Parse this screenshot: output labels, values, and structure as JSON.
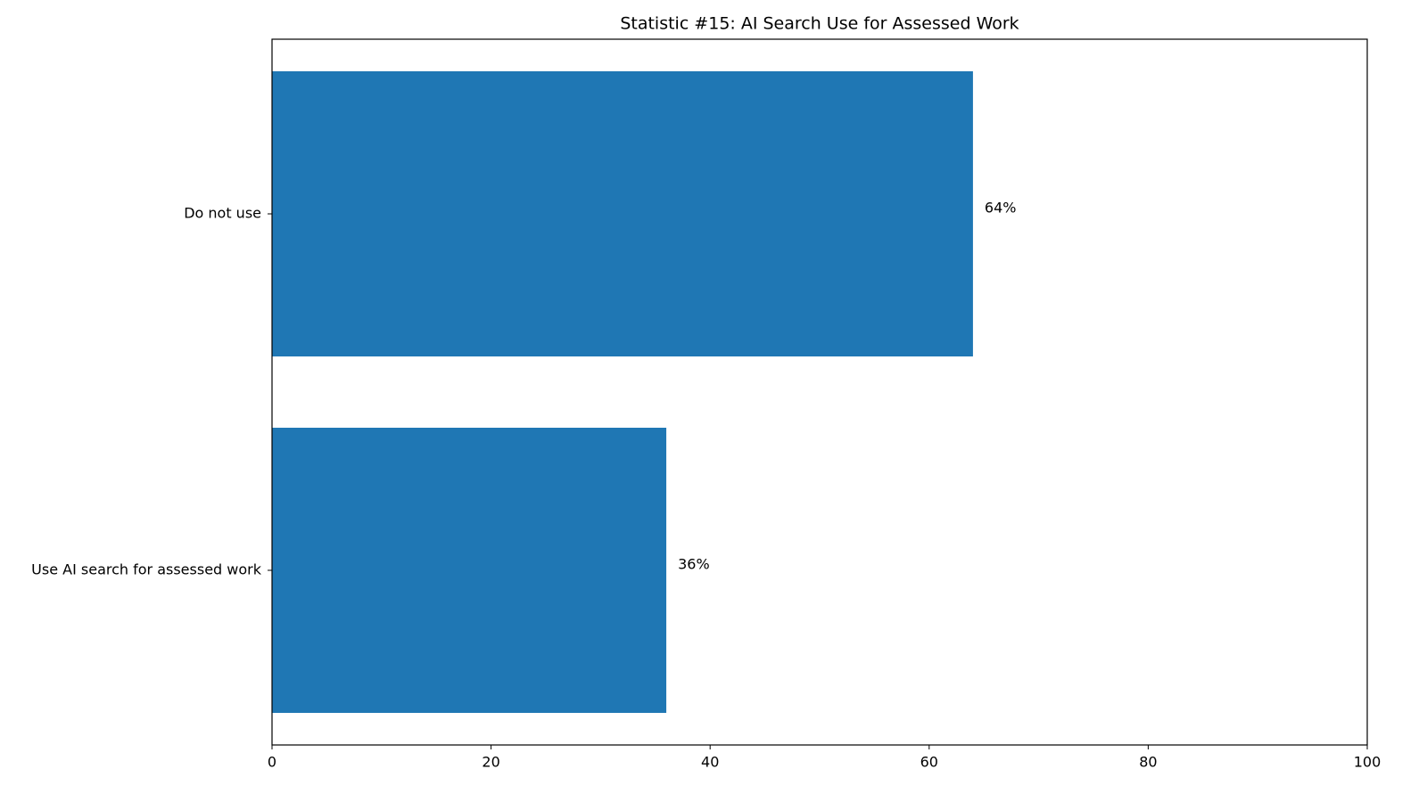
{
  "chart_data": {
    "type": "barh",
    "title": "Statistic #15: AI Search Use for Assessed Work",
    "categories": [
      "Use AI search for assessed work",
      "Do not use"
    ],
    "values": [
      36,
      64
    ],
    "value_labels": [
      "36%",
      "64%"
    ],
    "color": "#1f77b4",
    "xlim": [
      0,
      100
    ],
    "xticks": [
      0,
      20,
      40,
      60,
      80,
      100
    ]
  }
}
